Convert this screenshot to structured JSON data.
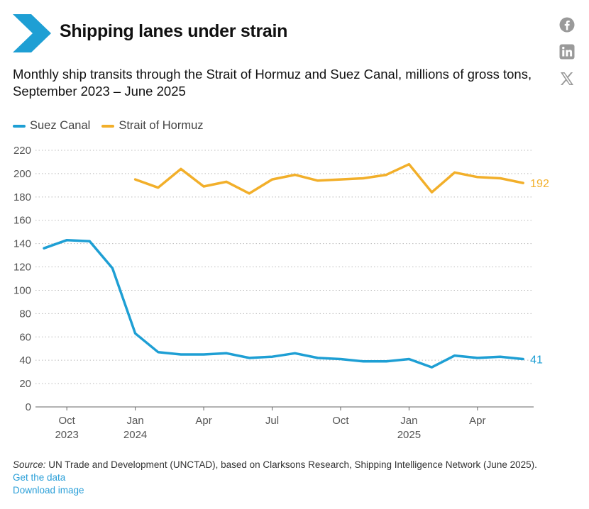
{
  "header": {
    "title": "Shipping lanes under strain",
    "subtitle": "Monthly ship transits through the Strait of Hormuz and Suez Canal, millions of gross tons, September 2023 – June 2025"
  },
  "colors": {
    "suez": "#1e9fd4",
    "hormuz": "#f2af2a",
    "accent": "#1e9fd4",
    "grid": "#bbbbbb",
    "axis": "#555555"
  },
  "share": {
    "facebook": "facebook-icon",
    "linkedin": "linkedin-icon",
    "x": "x-icon"
  },
  "chart_data": {
    "type": "line",
    "title": "Shipping lanes under strain",
    "ylim": [
      0,
      220
    ],
    "yticks": [
      0,
      20,
      40,
      60,
      80,
      100,
      120,
      140,
      160,
      180,
      200,
      220
    ],
    "x": [
      "2023-09",
      "2023-10",
      "2023-11",
      "2023-12",
      "2024-01",
      "2024-02",
      "2024-03",
      "2024-04",
      "2024-05",
      "2024-06",
      "2024-07",
      "2024-08",
      "2024-09",
      "2024-10",
      "2024-11",
      "2024-12",
      "2025-01",
      "2025-02",
      "2025-03",
      "2025-04",
      "2025-05",
      "2025-06"
    ],
    "xticks": [
      {
        "index": 1,
        "month": "Oct",
        "year": "2023"
      },
      {
        "index": 4,
        "month": "Jan",
        "year": "2024"
      },
      {
        "index": 7,
        "month": "Apr",
        "year": ""
      },
      {
        "index": 10,
        "month": "Jul",
        "year": ""
      },
      {
        "index": 13,
        "month": "Oct",
        "year": ""
      },
      {
        "index": 16,
        "month": "Jan",
        "year": "2025"
      },
      {
        "index": 19,
        "month": "Apr",
        "year": ""
      }
    ],
    "series": [
      {
        "name": "Suez Canal",
        "color": "#1e9fd4",
        "end_label": "41",
        "values": [
          136,
          143,
          142,
          119,
          63,
          47,
          45,
          45,
          46,
          42,
          43,
          46,
          42,
          41,
          39,
          39,
          41,
          34,
          44,
          42,
          43,
          41
        ]
      },
      {
        "name": "Strait of Hormuz",
        "color": "#f2af2a",
        "end_label": "192",
        "values": [
          null,
          null,
          null,
          null,
          195,
          188,
          204,
          189,
          193,
          183,
          195,
          199,
          194,
          195,
          196,
          199,
          208,
          184,
          201,
          197,
          196,
          192
        ]
      }
    ]
  },
  "footer": {
    "source_label": "Source:",
    "source_text": " UN Trade and Development (UNCTAD), based on Clarksons Research, Shipping Intelligence Network (June 2025).",
    "get_data": "Get the data",
    "download": "Download image"
  }
}
